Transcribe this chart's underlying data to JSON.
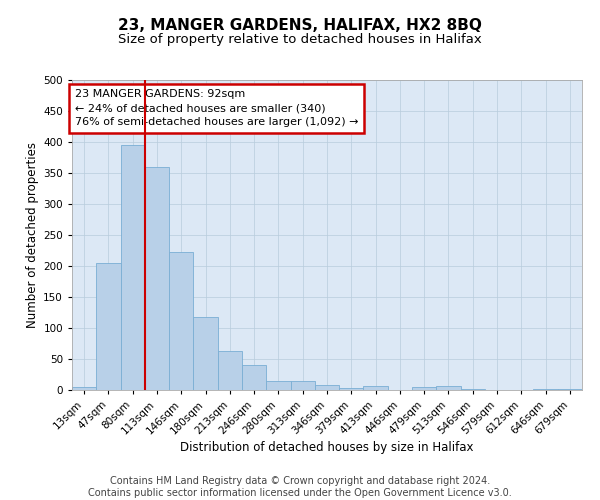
{
  "title": "23, MANGER GARDENS, HALIFAX, HX2 8BQ",
  "subtitle": "Size of property relative to detached houses in Halifax",
  "xlabel": "Distribution of detached houses by size in Halifax",
  "ylabel": "Number of detached properties",
  "bar_labels": [
    "13sqm",
    "47sqm",
    "80sqm",
    "113sqm",
    "146sqm",
    "180sqm",
    "213sqm",
    "246sqm",
    "280sqm",
    "313sqm",
    "346sqm",
    "379sqm",
    "413sqm",
    "446sqm",
    "479sqm",
    "513sqm",
    "546sqm",
    "579sqm",
    "612sqm",
    "646sqm",
    "679sqm"
  ],
  "bar_values": [
    5,
    205,
    395,
    360,
    222,
    118,
    63,
    40,
    14,
    14,
    8,
    4,
    7,
    0,
    5,
    7,
    2,
    0,
    0,
    1,
    2
  ],
  "bar_color": "#b8d0e8",
  "bar_edge_color": "#7aaed4",
  "vline_x_index": 2,
  "vline_color": "#cc0000",
  "annotation_text": "23 MANGER GARDENS: 92sqm\n← 24% of detached houses are smaller (340)\n76% of semi-detached houses are larger (1,092) →",
  "annotation_box_color": "#cc0000",
  "ylim": [
    0,
    500
  ],
  "yticks": [
    0,
    50,
    100,
    150,
    200,
    250,
    300,
    350,
    400,
    450,
    500
  ],
  "footnote": "Contains HM Land Registry data © Crown copyright and database right 2024.\nContains public sector information licensed under the Open Government Licence v3.0.",
  "bg_color": "#ffffff",
  "plot_bg_color": "#dce8f5",
  "grid_color": "#b8ccdc",
  "title_fontsize": 11,
  "subtitle_fontsize": 9.5,
  "axis_label_fontsize": 8.5,
  "tick_fontsize": 7.5,
  "footnote_fontsize": 7,
  "annotation_fontsize": 8
}
